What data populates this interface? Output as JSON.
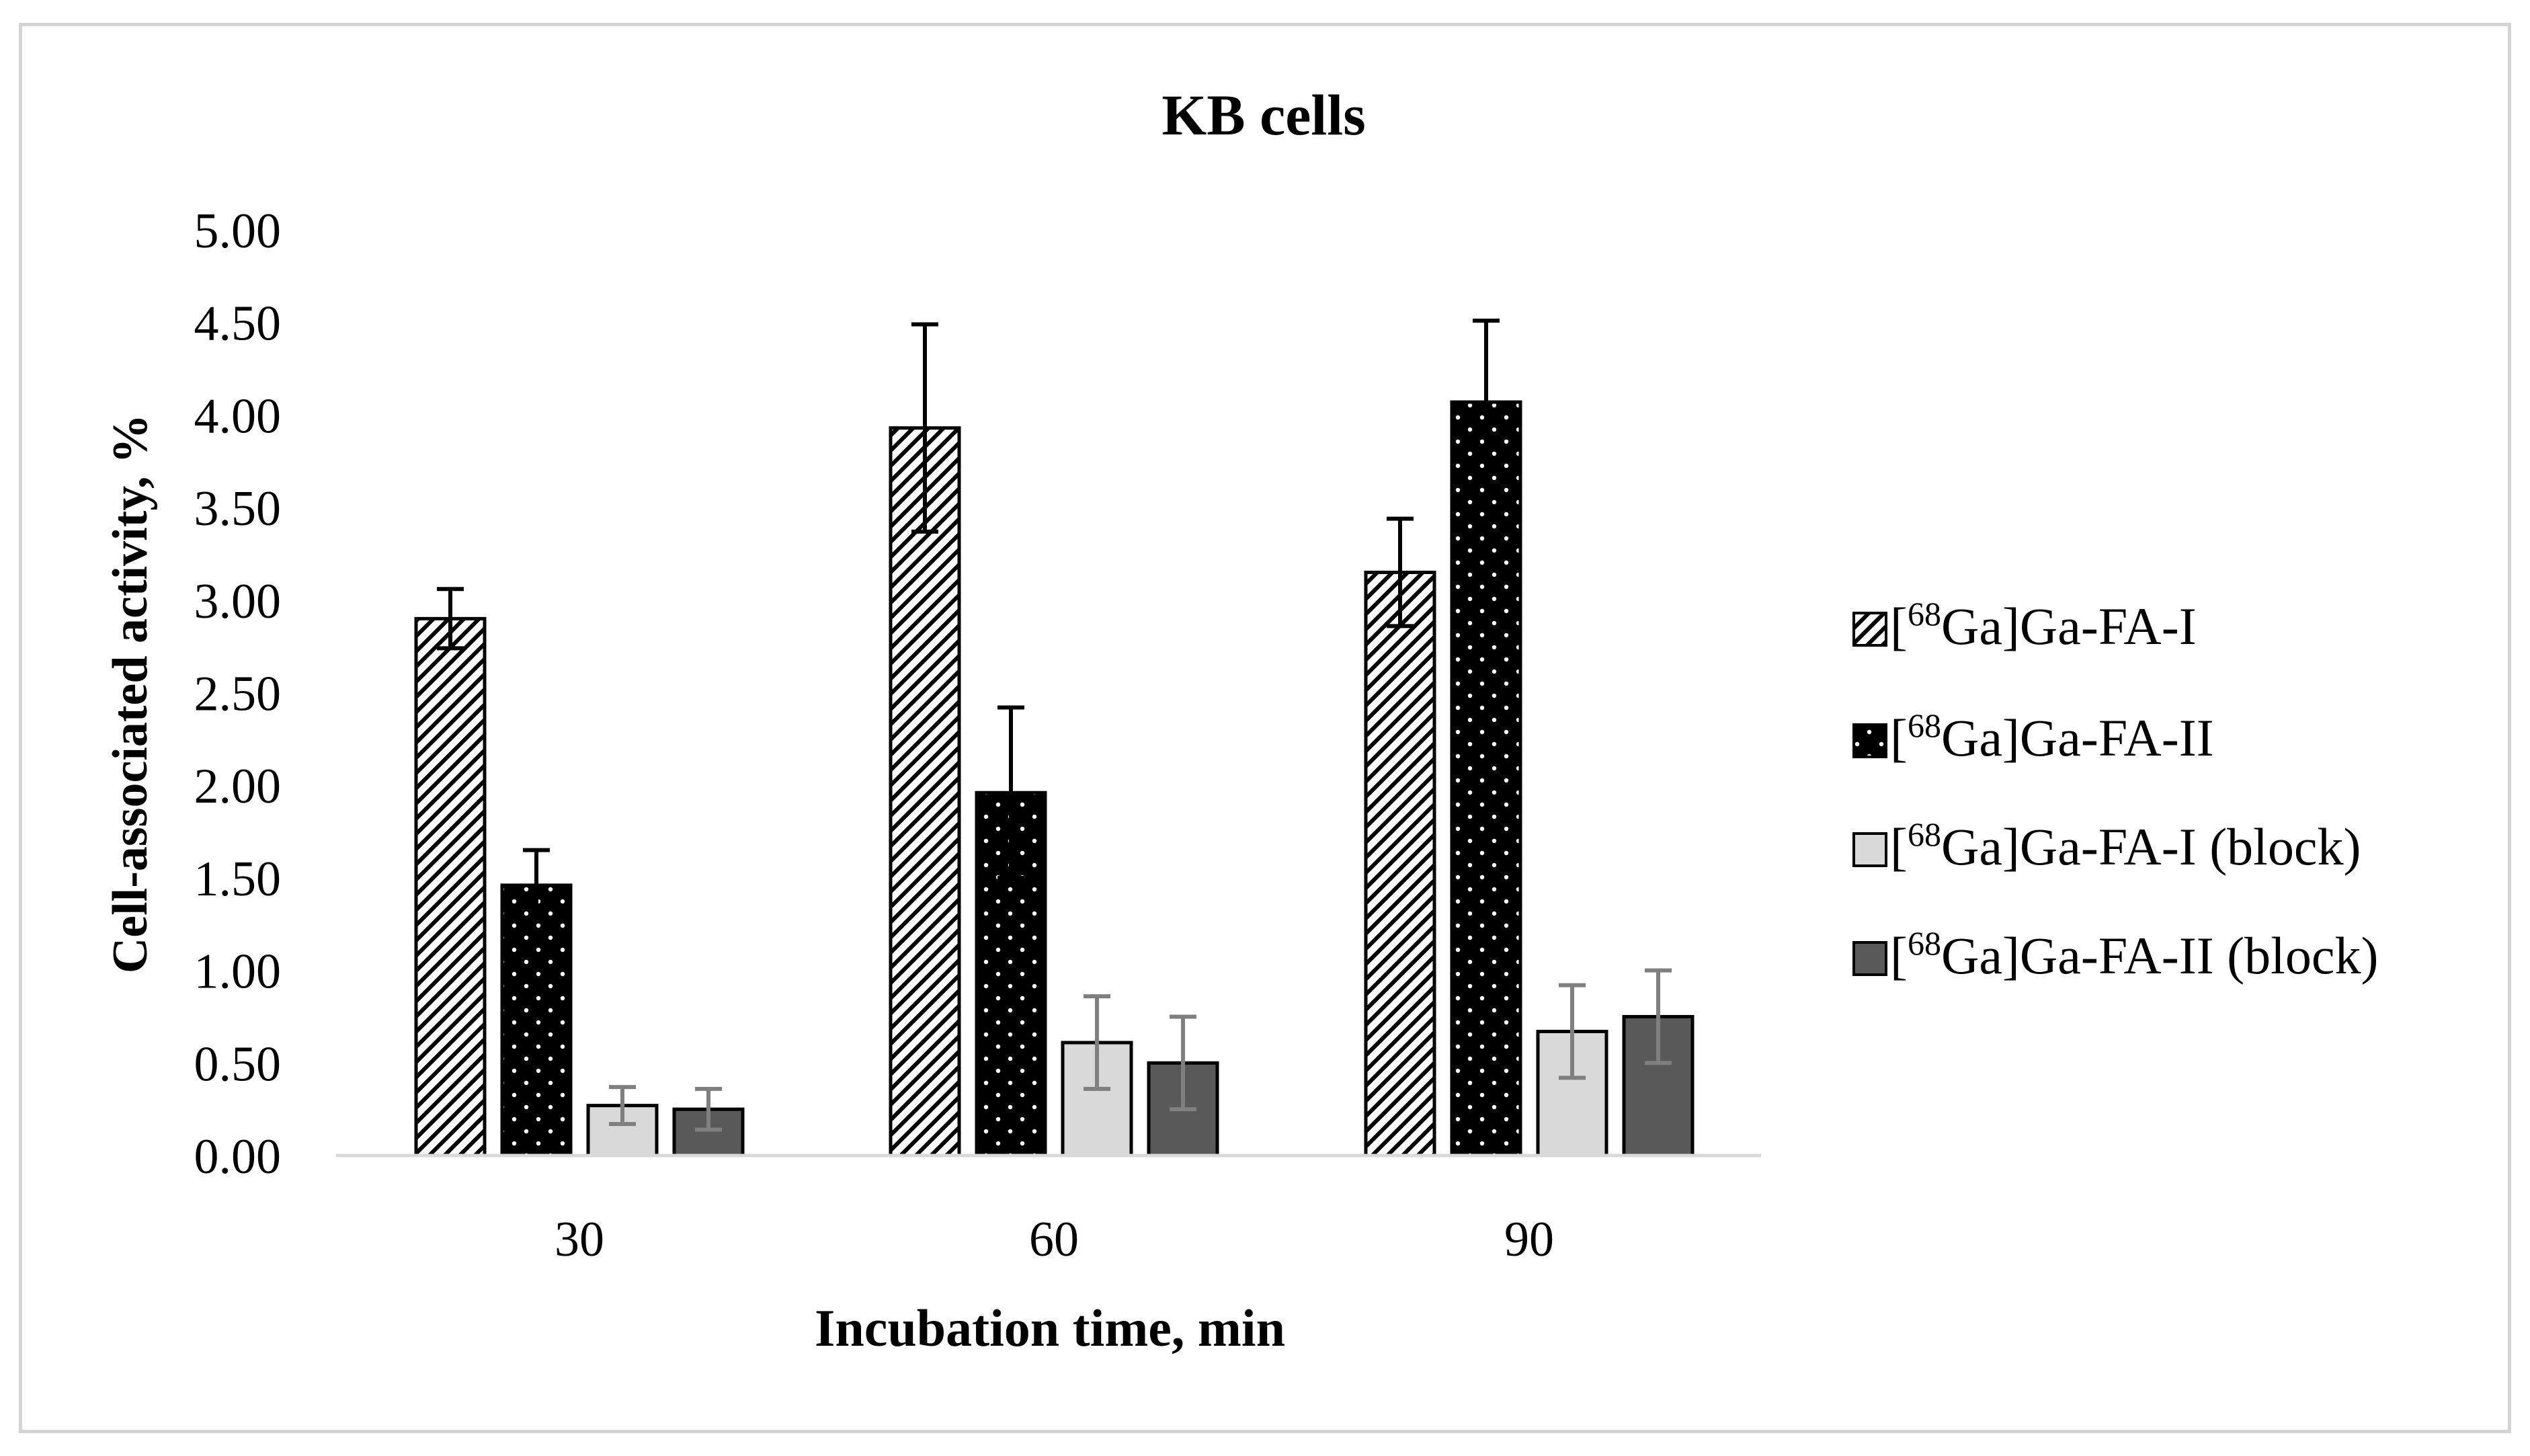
{
  "chart_data": {
    "type": "bar",
    "title": "KB cells",
    "xlabel": "Incubation time, min",
    "ylabel": "Cell-associated activity, %",
    "ylim": [
      0,
      5
    ],
    "yticks": [
      "0.00",
      "0.50",
      "1.00",
      "1.50",
      "2.00",
      "2.50",
      "3.00",
      "3.50",
      "4.00",
      "4.50",
      "5.00"
    ],
    "grid": false,
    "legend_position": "right",
    "categories": [
      "30",
      "60",
      "90"
    ],
    "series": [
      {
        "name": "[68Ga]Ga-FA-I",
        "superscript": "68",
        "label_prefix": "[",
        "label_suffix": "Ga]Ga-FA-I",
        "pattern": "hatch",
        "values": [
          2.9,
          3.93,
          3.15
        ],
        "errors": [
          0.16,
          0.56,
          0.29
        ]
      },
      {
        "name": "[68Ga]Ga-FA-II",
        "superscript": "68",
        "label_prefix": "[",
        "label_suffix": "Ga]Ga-FA-II",
        "pattern": "dots",
        "values": [
          1.46,
          1.96,
          4.07
        ],
        "errors": [
          0.19,
          0.46,
          0.44
        ]
      },
      {
        "name": "[68Ga]Ga-FA-I (block)",
        "superscript": "68",
        "label_prefix": "[",
        "label_suffix": "Ga]Ga-FA-I (block)",
        "pattern": "light",
        "values": [
          0.27,
          0.61,
          0.67
        ],
        "errors": [
          0.1,
          0.25,
          0.25
        ]
      },
      {
        "name": "[68Ga]Ga-FA-II (block)",
        "superscript": "68",
        "label_prefix": "[",
        "label_suffix": "Ga]Ga-FA-II (block)",
        "pattern": "dark",
        "values": [
          0.25,
          0.5,
          0.75
        ],
        "errors": [
          0.11,
          0.25,
          0.25
        ]
      }
    ],
    "colors": {
      "light_fill": "#d9d9d9",
      "dark_fill": "#595959",
      "bar_stroke": "#000000",
      "axis_line": "#d9d9d9",
      "error_gray": "#7f7f7f"
    }
  }
}
